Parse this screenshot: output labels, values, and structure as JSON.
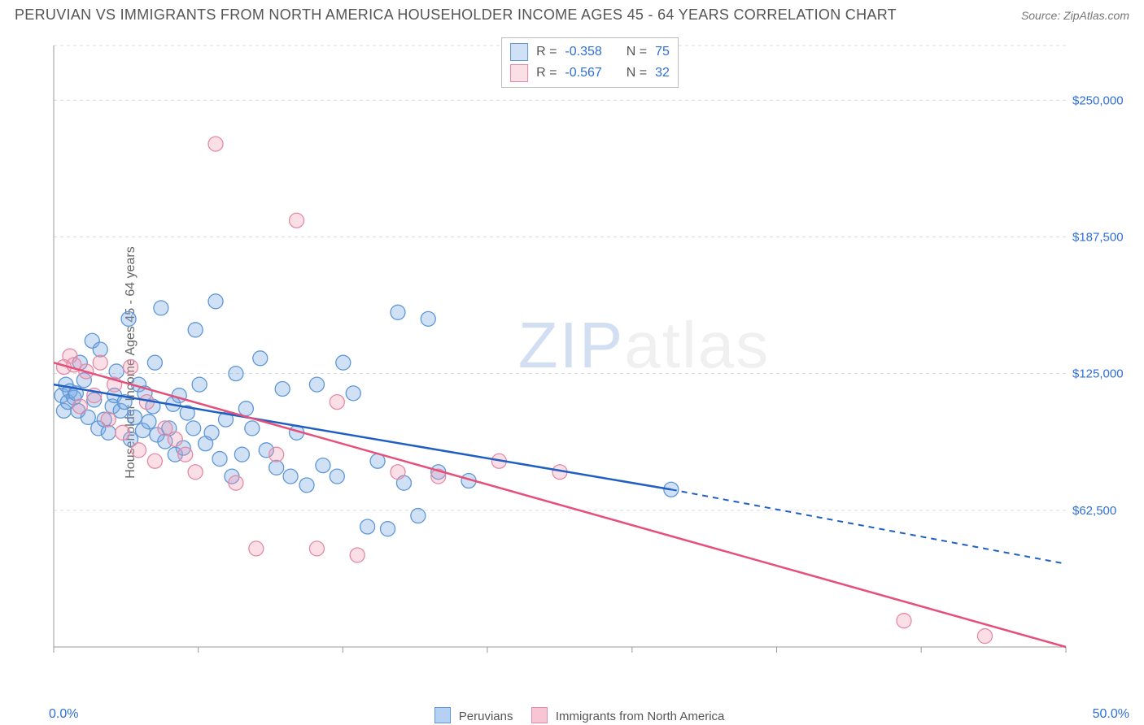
{
  "title": "PERUVIAN VS IMMIGRANTS FROM NORTH AMERICA HOUSEHOLDER INCOME AGES 45 - 64 YEARS CORRELATION CHART",
  "source": "Source: ZipAtlas.com",
  "ylabel": "Householder Income Ages 45 - 64 years",
  "chart": {
    "type": "scatter",
    "xlim": [
      0,
      50
    ],
    "ylim": [
      0,
      275000
    ],
    "yticks": [
      62500,
      125000,
      187500,
      250000
    ],
    "ytick_labels": [
      "$62,500",
      "$125,000",
      "$187,500",
      "$250,000"
    ],
    "xticks": [
      0,
      7.14,
      14.28,
      21.42,
      28.57,
      35.71,
      42.85,
      50
    ],
    "x_corner_left": "0.0%",
    "x_corner_right": "50.0%",
    "background_color": "#ffffff",
    "grid_color": "#d9d9d9",
    "grid_dash": "4,4",
    "point_radius": 9,
    "series": [
      {
        "name": "Peruvians",
        "color_fill": "rgba(120,170,230,0.35)",
        "color_stroke": "#5f97d6",
        "trend_color": "#1f5fc4",
        "R": "-0.358",
        "N": "75",
        "trend": {
          "x1": 0,
          "y1": 120000,
          "x2": 30.5,
          "y2": 72000,
          "dash_x2": 50,
          "dash_y2": 38000
        },
        "points": [
          [
            0.4,
            115000
          ],
          [
            0.5,
            108000
          ],
          [
            0.6,
            120000
          ],
          [
            0.7,
            112000
          ],
          [
            0.8,
            117000
          ],
          [
            1.0,
            114000
          ],
          [
            1.1,
            116000
          ],
          [
            1.2,
            108000
          ],
          [
            1.3,
            130000
          ],
          [
            1.5,
            122000
          ],
          [
            1.7,
            105000
          ],
          [
            1.9,
            140000
          ],
          [
            2.0,
            113000
          ],
          [
            2.2,
            100000
          ],
          [
            2.3,
            136000
          ],
          [
            2.5,
            104000
          ],
          [
            2.7,
            98000
          ],
          [
            2.9,
            110000
          ],
          [
            3.0,
            115000
          ],
          [
            3.1,
            126000
          ],
          [
            3.3,
            108000
          ],
          [
            3.5,
            112000
          ],
          [
            3.7,
            150000
          ],
          [
            3.8,
            95000
          ],
          [
            4.0,
            105000
          ],
          [
            4.2,
            120000
          ],
          [
            4.4,
            99000
          ],
          [
            4.5,
            116000
          ],
          [
            4.7,
            103000
          ],
          [
            4.9,
            110000
          ],
          [
            5.0,
            130000
          ],
          [
            5.1,
            97000
          ],
          [
            5.3,
            155000
          ],
          [
            5.5,
            94000
          ],
          [
            5.7,
            100000
          ],
          [
            5.9,
            111000
          ],
          [
            6.0,
            88000
          ],
          [
            6.2,
            115000
          ],
          [
            6.4,
            91000
          ],
          [
            6.6,
            107000
          ],
          [
            6.9,
            100000
          ],
          [
            7.0,
            145000
          ],
          [
            7.2,
            120000
          ],
          [
            7.5,
            93000
          ],
          [
            7.8,
            98000
          ],
          [
            8.0,
            158000
          ],
          [
            8.2,
            86000
          ],
          [
            8.5,
            104000
          ],
          [
            8.8,
            78000
          ],
          [
            9.0,
            125000
          ],
          [
            9.3,
            88000
          ],
          [
            9.5,
            109000
          ],
          [
            9.8,
            100000
          ],
          [
            10.2,
            132000
          ],
          [
            10.5,
            90000
          ],
          [
            11.0,
            82000
          ],
          [
            11.3,
            118000
          ],
          [
            11.7,
            78000
          ],
          [
            12.0,
            98000
          ],
          [
            12.5,
            74000
          ],
          [
            13.0,
            120000
          ],
          [
            13.3,
            83000
          ],
          [
            14.0,
            78000
          ],
          [
            14.3,
            130000
          ],
          [
            14.8,
            116000
          ],
          [
            15.5,
            55000
          ],
          [
            16.0,
            85000
          ],
          [
            16.5,
            54000
          ],
          [
            17.0,
            153000
          ],
          [
            17.3,
            75000
          ],
          [
            18.0,
            60000
          ],
          [
            18.5,
            150000
          ],
          [
            19.0,
            80000
          ],
          [
            20.5,
            76000
          ],
          [
            30.5,
            72000
          ]
        ]
      },
      {
        "name": "Immigrants from North America",
        "color_fill": "rgba(240,150,175,0.30)",
        "color_stroke": "#e58aa5",
        "trend_color": "#e64f7a",
        "R": "-0.567",
        "N": "32",
        "trend": {
          "x1": 0,
          "y1": 130000,
          "x2": 50,
          "y2": 0
        },
        "points": [
          [
            0.5,
            128000
          ],
          [
            0.8,
            133000
          ],
          [
            1.0,
            129000
          ],
          [
            1.3,
            110000
          ],
          [
            1.6,
            126000
          ],
          [
            2.0,
            115000
          ],
          [
            2.3,
            130000
          ],
          [
            2.7,
            104000
          ],
          [
            3.0,
            120000
          ],
          [
            3.4,
            98000
          ],
          [
            3.8,
            128000
          ],
          [
            4.2,
            90000
          ],
          [
            4.6,
            112000
          ],
          [
            5.0,
            85000
          ],
          [
            5.5,
            100000
          ],
          [
            6.0,
            95000
          ],
          [
            6.5,
            88000
          ],
          [
            7.0,
            80000
          ],
          [
            8.0,
            230000
          ],
          [
            9.0,
            75000
          ],
          [
            10.0,
            45000
          ],
          [
            11.0,
            88000
          ],
          [
            12.0,
            195000
          ],
          [
            13.0,
            45000
          ],
          [
            14.0,
            112000
          ],
          [
            15.0,
            42000
          ],
          [
            17.0,
            80000
          ],
          [
            19.0,
            78000
          ],
          [
            22.0,
            85000
          ],
          [
            25.0,
            80000
          ],
          [
            42.0,
            12000
          ],
          [
            46.0,
            5000
          ]
        ]
      }
    ],
    "legend_top": {
      "labels": [
        "R =",
        "N ="
      ]
    },
    "legend_bottom": [
      {
        "label": "Peruvians",
        "fill": "rgba(120,170,230,0.55)",
        "stroke": "#5f97d6"
      },
      {
        "label": "Immigrants from North America",
        "fill": "rgba(240,150,175,0.55)",
        "stroke": "#e58aa5"
      }
    ]
  },
  "watermark": {
    "a": "ZIP",
    "b": "atlas"
  }
}
